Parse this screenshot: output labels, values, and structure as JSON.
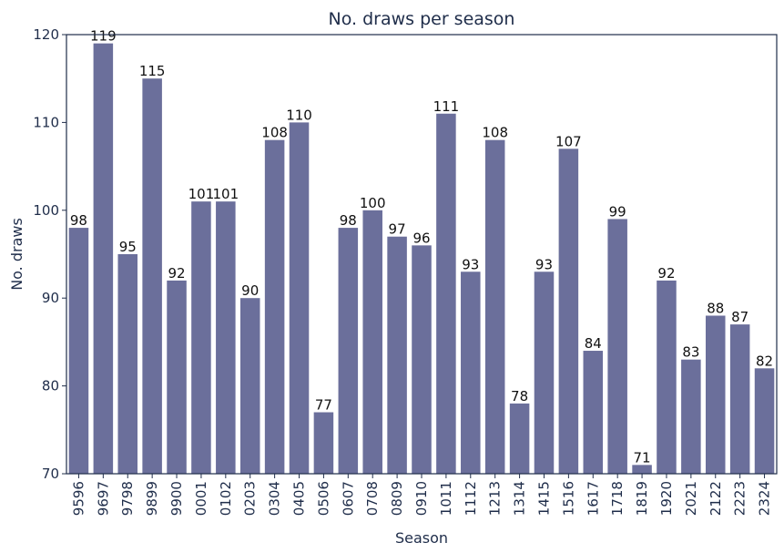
{
  "chart_data": {
    "type": "bar",
    "title": "No. draws per season",
    "xlabel": "Season",
    "ylabel": "No. draws",
    "ylim": [
      70,
      120
    ],
    "yticks": [
      70,
      80,
      90,
      100,
      110,
      120
    ],
    "categories": [
      "9596",
      "9697",
      "9798",
      "9899",
      "9900",
      "0001",
      "0102",
      "0203",
      "0304",
      "0405",
      "0506",
      "0607",
      "0708",
      "0809",
      "0910",
      "1011",
      "1112",
      "1213",
      "1314",
      "1415",
      "1516",
      "1617",
      "1718",
      "1819",
      "1920",
      "2021",
      "2122",
      "2223",
      "2324"
    ],
    "values": [
      98,
      119,
      95,
      115,
      92,
      101,
      101,
      90,
      108,
      110,
      77,
      98,
      100,
      97,
      96,
      111,
      93,
      108,
      78,
      93,
      107,
      84,
      99,
      71,
      92,
      83,
      88,
      87,
      82
    ],
    "bar_color": "#6b6f9b",
    "grid": false
  }
}
